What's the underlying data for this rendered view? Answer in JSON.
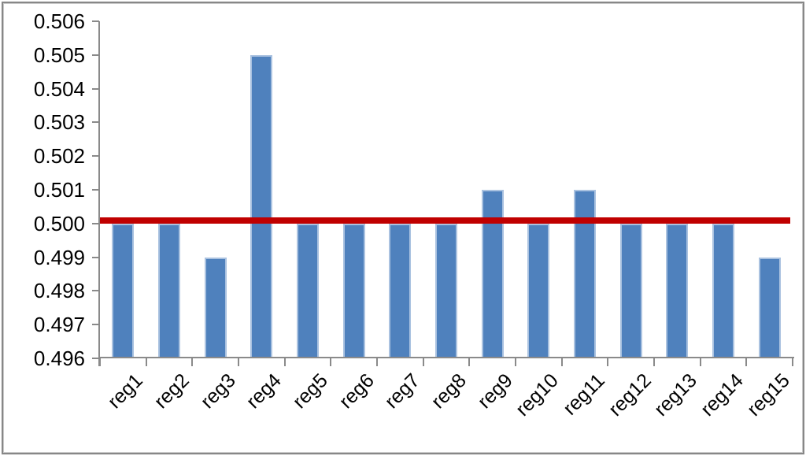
{
  "chart_data": {
    "type": "bar",
    "title": "",
    "xlabel": "",
    "ylabel": "",
    "categories": [
      "reg1",
      "reg2",
      "reg3",
      "reg4",
      "reg5",
      "reg6",
      "reg7",
      "reg8",
      "reg9",
      "reg10",
      "reg11",
      "reg12",
      "reg13",
      "reg14",
      "reg15"
    ],
    "values": [
      0.5,
      0.5,
      0.499,
      0.505,
      0.5,
      0.5,
      0.5,
      0.5,
      0.501,
      0.5,
      0.501,
      0.5,
      0.5,
      0.5,
      0.499
    ],
    "ylim": [
      0.496,
      0.506
    ],
    "ytick_step": 0.001,
    "ytick_labels": [
      "0.496",
      "0.497",
      "0.498",
      "0.499",
      "0.500",
      "0.501",
      "0.502",
      "0.503",
      "0.504",
      "0.505",
      "0.506"
    ],
    "reference_line": {
      "value": 0.5001,
      "color": "#c00000"
    },
    "bar_color": "#4f81bd",
    "bar_border_color": "#aac2e0",
    "axis_color": "#8a8a8a",
    "text_color": "#000000",
    "grid": false,
    "legend": "none"
  }
}
